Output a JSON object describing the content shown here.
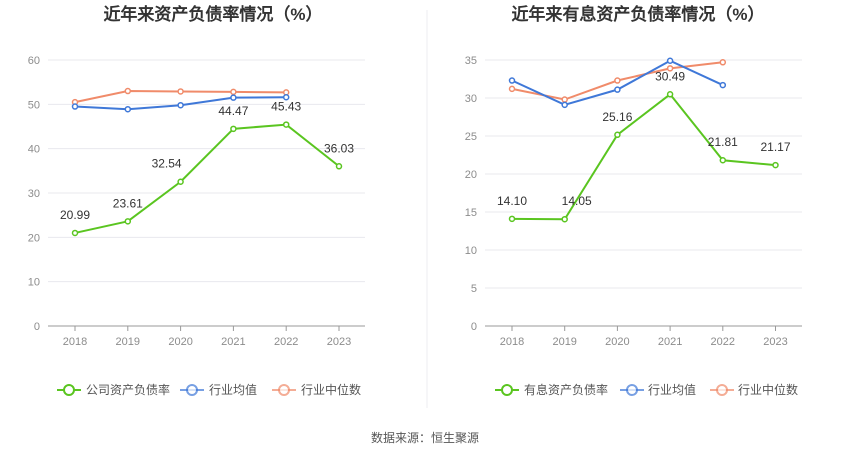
{
  "footer": {
    "source": "数据来源：恒生聚源"
  },
  "colors": {
    "company": "#5ac520",
    "industry_avg": "#3f78d8",
    "industry_median": "#f08b6a",
    "grid": "#e8e8ee",
    "axis": "#999999"
  },
  "chart_data": [
    {
      "type": "line",
      "title": "近年来资产负债率情况（%）",
      "categories": [
        "2018",
        "2019",
        "2020",
        "2021",
        "2022",
        "2023"
      ],
      "ylim": [
        0,
        60
      ],
      "yticks": [
        0,
        10,
        20,
        30,
        40,
        50,
        60
      ],
      "ytick_labels": [
        "0",
        "10",
        "20",
        "30",
        "40",
        "50",
        "60"
      ],
      "series": [
        {
          "name": "公司资产负债率",
          "key": "company",
          "values": [
            20.99,
            23.61,
            32.54,
            44.47,
            45.43,
            36.03
          ],
          "labels": [
            "20.99",
            "23.61",
            "32.54",
            "44.47",
            "45.43",
            "36.03"
          ]
        },
        {
          "name": "行业均值",
          "key": "industry_avg",
          "values": [
            49.5,
            48.9,
            49.8,
            51.5,
            51.6,
            null
          ]
        },
        {
          "name": "行业中位数",
          "key": "industry_median",
          "values": [
            50.5,
            53.0,
            52.9,
            52.8,
            52.7,
            null
          ]
        }
      ]
    },
    {
      "type": "line",
      "title": "近年来有息资产负债率情况（%）",
      "categories": [
        "2018",
        "2019",
        "2020",
        "2021",
        "2022",
        "2023"
      ],
      "ylim": [
        0,
        35
      ],
      "yticks": [
        0,
        5,
        10,
        15,
        20,
        25,
        30,
        35
      ],
      "ytick_labels": [
        "0",
        "5",
        "10",
        "15",
        "20",
        "25",
        "30",
        "35"
      ],
      "series": [
        {
          "name": "有息资产负债率",
          "key": "company",
          "values": [
            14.1,
            14.05,
            25.16,
            30.49,
            21.81,
            21.17
          ],
          "labels": [
            "14.10",
            "14.05",
            "25.16",
            "30.49",
            "21.81",
            "21.17"
          ]
        },
        {
          "name": "行业均值",
          "key": "industry_avg",
          "values": [
            32.3,
            29.1,
            31.1,
            34.9,
            31.7,
            null
          ]
        },
        {
          "name": "行业中位数",
          "key": "industry_median",
          "values": [
            31.2,
            29.8,
            32.3,
            33.9,
            34.7,
            null
          ]
        }
      ]
    }
  ]
}
